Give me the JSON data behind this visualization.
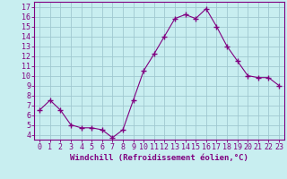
{
  "x": [
    0,
    1,
    2,
    3,
    4,
    5,
    6,
    7,
    8,
    9,
    10,
    11,
    12,
    13,
    14,
    15,
    16,
    17,
    18,
    19,
    20,
    21,
    22,
    23
  ],
  "y": [
    6.5,
    7.5,
    6.5,
    5.0,
    4.7,
    4.7,
    4.5,
    3.7,
    4.5,
    7.5,
    10.5,
    12.2,
    14.0,
    15.8,
    16.2,
    15.8,
    16.8,
    15.0,
    13.0,
    11.5,
    10.0,
    9.8,
    9.8,
    9.0
  ],
  "line_color": "#800080",
  "marker": "+",
  "marker_size": 4,
  "bg_color": "#c8eef0",
  "grid_color": "#a0c8d0",
  "axis_color": "#800080",
  "xlabel": "Windchill (Refroidissement éolien,°C)",
  "ylim": [
    3.5,
    17.5
  ],
  "xlim": [
    -0.5,
    23.5
  ],
  "yticks": [
    4,
    5,
    6,
    7,
    8,
    9,
    10,
    11,
    12,
    13,
    14,
    15,
    16,
    17
  ],
  "xticks": [
    0,
    1,
    2,
    3,
    4,
    5,
    6,
    7,
    8,
    9,
    10,
    11,
    12,
    13,
    14,
    15,
    16,
    17,
    18,
    19,
    20,
    21,
    22,
    23
  ],
  "label_fontsize": 6.5,
  "tick_fontsize": 6.0
}
